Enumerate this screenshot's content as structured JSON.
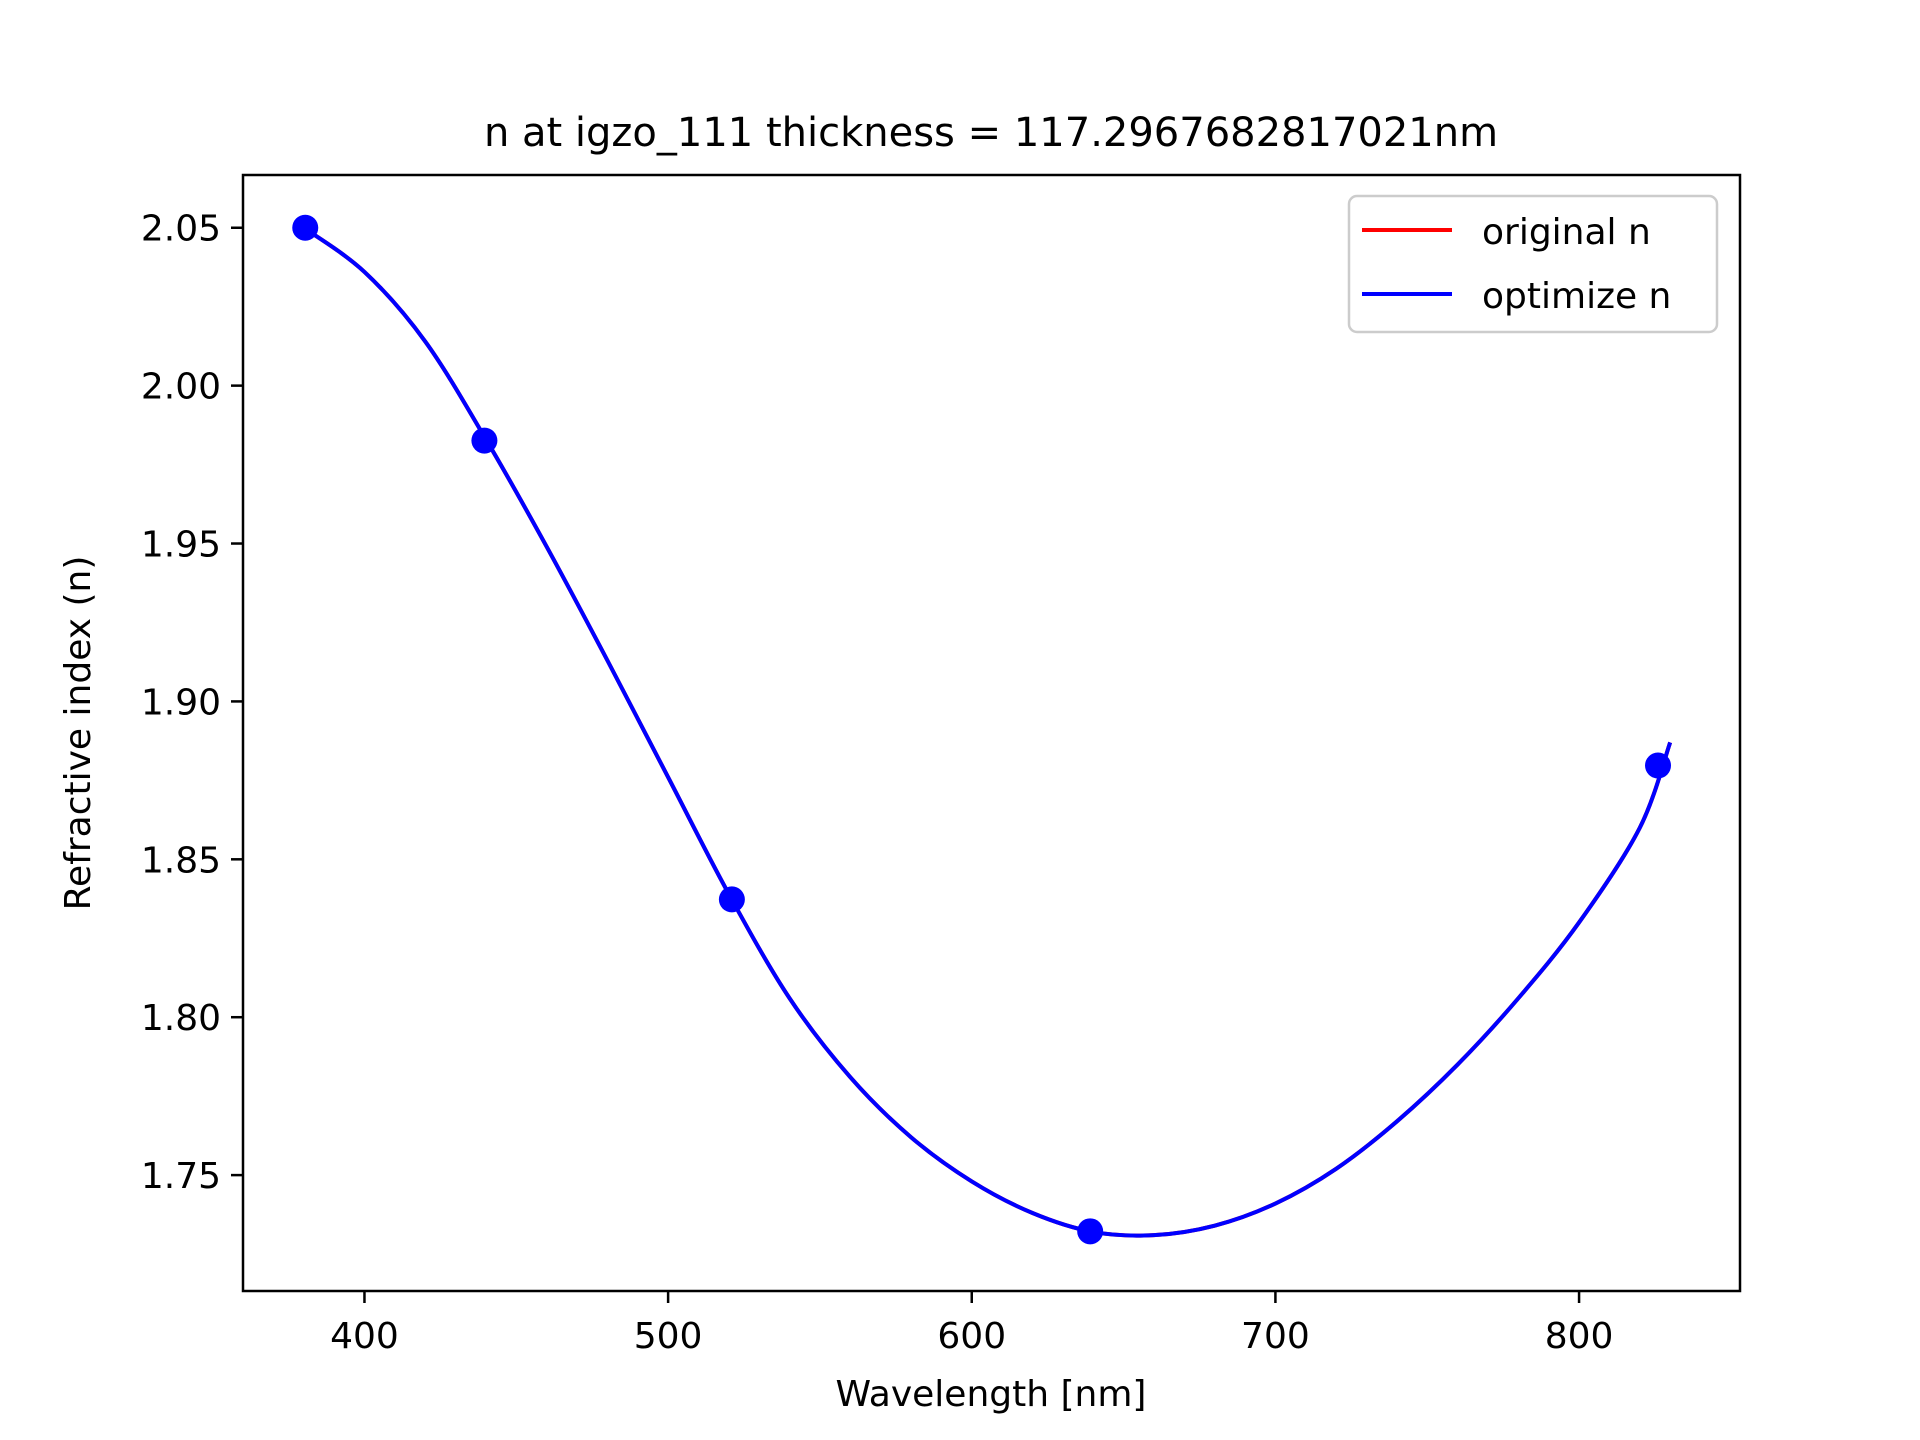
{
  "chart_data": {
    "type": "line",
    "title": "n at igzo_111 thickness = 117.2967682817021nm",
    "xlabel": "Wavelength [nm]",
    "ylabel": "Refractive index (n)",
    "xlim": [
      360,
      853
    ],
    "ylim": [
      1.7133,
      2.0667
    ],
    "xticks": [
      400,
      500,
      600,
      700,
      800
    ],
    "xtick_labels": [
      "400",
      "500",
      "600",
      "700",
      "800"
    ],
    "yticks": [
      1.75,
      1.8,
      1.85,
      1.9,
      1.95,
      2.0,
      2.05
    ],
    "ytick_labels": [
      "1.75",
      "1.80",
      "1.85",
      "1.90",
      "1.95",
      "2.00",
      "2.05"
    ],
    "grid": false,
    "legend": {
      "position": "top-right",
      "entries": [
        {
          "name": "original n",
          "color": "#ff0000"
        },
        {
          "name": "optimize n",
          "color": "#0000ff"
        }
      ]
    },
    "series": [
      {
        "name": "original n",
        "color": "#ff0000",
        "x": [
          380,
          400,
          420,
          440,
          460,
          480,
          500,
          520,
          540,
          560,
          580,
          600,
          620,
          640,
          660,
          680,
          700,
          720,
          740,
          760,
          780,
          800,
          820,
          830
        ],
        "y": [
          2.05,
          2.036,
          2.014,
          1.983,
          1.949,
          1.913,
          1.876,
          1.839,
          1.806,
          1.781,
          1.762,
          1.748,
          1.738,
          1.732,
          1.731,
          1.734,
          1.741,
          1.752,
          1.767,
          1.785,
          1.806,
          1.83,
          1.86,
          1.887
        ]
      },
      {
        "name": "optimize n",
        "color": "#0000ff",
        "x": [
          380,
          400,
          420,
          440,
          460,
          480,
          500,
          520,
          540,
          560,
          580,
          600,
          620,
          640,
          660,
          680,
          700,
          720,
          740,
          760,
          780,
          800,
          820,
          830
        ],
        "y": [
          2.05,
          2.036,
          2.014,
          1.983,
          1.949,
          1.913,
          1.876,
          1.839,
          1.806,
          1.781,
          1.762,
          1.748,
          1.738,
          1.732,
          1.731,
          1.734,
          1.741,
          1.752,
          1.767,
          1.785,
          1.806,
          1.83,
          1.86,
          1.887
        ]
      }
    ],
    "markers": {
      "color": "#0000ff",
      "x": [
        380.5,
        439.5,
        521,
        639,
        826
      ],
      "y": [
        2.05,
        1.9826,
        1.8373,
        1.7322,
        1.8797
      ]
    }
  }
}
